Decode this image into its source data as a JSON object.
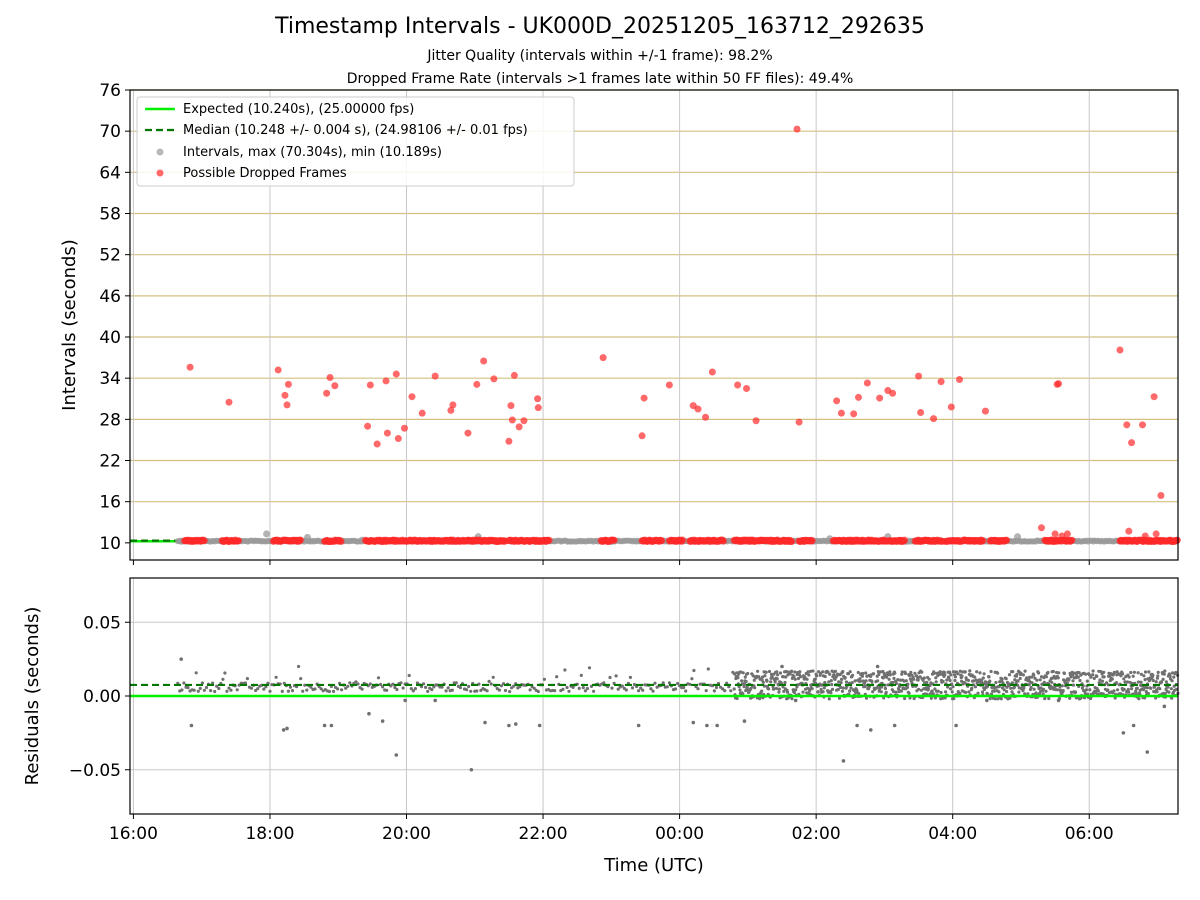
{
  "figure": {
    "title": "Timestamp Intervals - UK000D_20251205_163712_292635",
    "subtitle_jitter": "Jitter Quality (intervals within +/-1 frame): 98.2%",
    "subtitle_dropped": "Dropped Frame Rate (intervals >1 frames late within 50 FF files): 49.4%",
    "colors": {
      "expected": "#00ee00",
      "median": "#007700",
      "intervals": "#9a9a9a",
      "dropped": "#ff2a2a",
      "hgrid_top": "#d4c080",
      "grid": "#c8c8c8",
      "residual_points": "#707070"
    }
  },
  "chart_data": [
    {
      "type": "scatter",
      "name": "intervals",
      "ylabel": "Intervals (seconds)",
      "xlim_hours": [
        15.95,
        31.3
      ],
      "ylim": [
        7.5,
        76
      ],
      "yticks": [
        "10",
        "16",
        "22",
        "28",
        "34",
        "40",
        "46",
        "52",
        "58",
        "64",
        "70",
        "76"
      ],
      "grid": true,
      "legend_position": "top-left",
      "legend": [
        {
          "label": "Expected (10.240s), (25.00000 fps)",
          "marker": "solid-line"
        },
        {
          "label": "Median (10.248 +/- 0.004 s), (24.98106 +/- 0.01 fps)",
          "marker": "dashed-line"
        },
        {
          "label": "Intervals, max (70.304s), min (10.189s)",
          "marker": "gray-dot"
        },
        {
          "label": "Possible Dropped Frames",
          "marker": "red-dot"
        }
      ],
      "expected_interval": 10.24,
      "median_interval": 10.248,
      "interval_points": [
        [
          16.7,
          10.25
        ],
        [
          17.95,
          11.3
        ],
        [
          18.55,
          10.8
        ],
        [
          19.35,
          10.4
        ],
        [
          20.65,
          10.3
        ],
        [
          21.05,
          10.9
        ],
        [
          23.0,
          10.2
        ],
        [
          25.55,
          10.35
        ],
        [
          26.2,
          10.6
        ],
        [
          27.05,
          10.9
        ],
        [
          28.45,
          10.3
        ],
        [
          28.95,
          10.9
        ],
        [
          31.2,
          10.2
        ]
      ],
      "dropped_points": [
        [
          16.83,
          35.6
        ],
        [
          17.4,
          30.5
        ],
        [
          18.12,
          35.2
        ],
        [
          18.22,
          31.5
        ],
        [
          18.25,
          30.1
        ],
        [
          18.27,
          33.1
        ],
        [
          18.83,
          31.8
        ],
        [
          18.88,
          34.1
        ],
        [
          18.95,
          32.9
        ],
        [
          19.43,
          27.0
        ],
        [
          19.47,
          33.0
        ],
        [
          19.57,
          24.4
        ],
        [
          19.7,
          33.6
        ],
        [
          19.72,
          26.0
        ],
        [
          19.85,
          34.6
        ],
        [
          19.88,
          25.2
        ],
        [
          19.97,
          26.7
        ],
        [
          20.08,
          31.3
        ],
        [
          20.23,
          28.9
        ],
        [
          20.42,
          34.3
        ],
        [
          20.65,
          29.3
        ],
        [
          20.68,
          30.1
        ],
        [
          20.9,
          26.0
        ],
        [
          21.03,
          33.1
        ],
        [
          21.13,
          36.5
        ],
        [
          21.28,
          33.9
        ],
        [
          21.5,
          24.8
        ],
        [
          21.53,
          30.0
        ],
        [
          21.55,
          27.9
        ],
        [
          21.58,
          34.4
        ],
        [
          21.65,
          26.9
        ],
        [
          21.72,
          27.8
        ],
        [
          21.92,
          31.0
        ],
        [
          21.93,
          29.7
        ],
        [
          22.88,
          37.0
        ],
        [
          23.45,
          25.6
        ],
        [
          23.48,
          31.1
        ],
        [
          23.85,
          33.0
        ],
        [
          24.2,
          30.0
        ],
        [
          24.27,
          29.5
        ],
        [
          24.38,
          28.3
        ],
        [
          24.48,
          34.9
        ],
        [
          24.85,
          33.0
        ],
        [
          24.98,
          32.5
        ],
        [
          25.12,
          27.8
        ],
        [
          25.72,
          70.3
        ],
        [
          25.75,
          27.6
        ],
        [
          26.3,
          30.7
        ],
        [
          26.37,
          28.9
        ],
        [
          26.55,
          28.8
        ],
        [
          26.62,
          31.2
        ],
        [
          26.75,
          33.3
        ],
        [
          26.93,
          31.1
        ],
        [
          27.05,
          32.2
        ],
        [
          27.12,
          31.8
        ],
        [
          27.5,
          34.3
        ],
        [
          27.53,
          29.0
        ],
        [
          27.72,
          28.1
        ],
        [
          27.83,
          33.5
        ],
        [
          27.98,
          29.8
        ],
        [
          28.1,
          33.8
        ],
        [
          28.48,
          29.2
        ],
        [
          29.53,
          33.1
        ],
        [
          29.55,
          33.2
        ],
        [
          29.3,
          12.2
        ],
        [
          29.5,
          11.3
        ],
        [
          29.6,
          11.0
        ],
        [
          29.68,
          11.3
        ],
        [
          30.45,
          38.1
        ],
        [
          30.55,
          27.2
        ],
        [
          30.62,
          24.6
        ],
        [
          30.58,
          11.7
        ],
        [
          30.78,
          27.2
        ],
        [
          30.82,
          11.0
        ],
        [
          30.95,
          31.3
        ],
        [
          30.98,
          11.3
        ],
        [
          31.05,
          16.9
        ]
      ],
      "dropped_bands_hours": [
        [
          16.75,
          17.05
        ],
        [
          17.3,
          17.55
        ],
        [
          18.05,
          18.45
        ],
        [
          18.8,
          19.05
        ],
        [
          19.4,
          21.05
        ],
        [
          21.05,
          21.45
        ],
        [
          21.5,
          22.1
        ],
        [
          22.85,
          23.05
        ],
        [
          23.45,
          23.75
        ],
        [
          23.85,
          24.05
        ],
        [
          24.15,
          24.65
        ],
        [
          24.8,
          25.65
        ],
        [
          25.75,
          25.95
        ],
        [
          26.25,
          27.3
        ],
        [
          27.45,
          27.85
        ],
        [
          27.9,
          28.45
        ],
        [
          28.55,
          28.8
        ],
        [
          29.35,
          29.75
        ],
        [
          30.45,
          31.3
        ]
      ]
    },
    {
      "type": "scatter",
      "name": "residuals",
      "xlabel": "Time (UTC)",
      "ylabel": "Residuals (seconds)",
      "xlim_hours": [
        15.95,
        31.3
      ],
      "ylim": [
        -0.08,
        0.08
      ],
      "yticks": [
        "0.05",
        "0.00",
        "−0.05"
      ],
      "ytick_values": [
        0.05,
        0.0,
        -0.05
      ],
      "xtick_hours": [
        16,
        18,
        20,
        22,
        24,
        26,
        28,
        30
      ],
      "xticks": [
        "16:00",
        "18:00",
        "20:00",
        "22:00",
        "00:00",
        "02:00",
        "04:00",
        "06:00"
      ],
      "grid": true,
      "expected_residual": 0.0,
      "median_residual": 0.0075,
      "dense_region_start_hour": 24.8,
      "outliers": [
        [
          16.7,
          0.025
        ],
        [
          16.85,
          -0.02
        ],
        [
          18.2,
          -0.023
        ],
        [
          18.25,
          -0.022
        ],
        [
          18.8,
          -0.02
        ],
        [
          18.9,
          -0.02
        ],
        [
          19.45,
          -0.012
        ],
        [
          19.65,
          -0.017
        ],
        [
          19.85,
          -0.04
        ],
        [
          19.98,
          -0.003
        ],
        [
          20.42,
          -0.003
        ],
        [
          20.95,
          -0.05
        ],
        [
          21.15,
          -0.018
        ],
        [
          21.5,
          -0.02
        ],
        [
          21.6,
          -0.019
        ],
        [
          21.95,
          -0.02
        ],
        [
          23.4,
          -0.02
        ],
        [
          24.2,
          -0.018
        ],
        [
          24.4,
          -0.02
        ],
        [
          24.55,
          -0.02
        ],
        [
          24.95,
          -0.017
        ],
        [
          25.7,
          -0.003
        ],
        [
          26.4,
          -0.044
        ],
        [
          26.6,
          -0.02
        ],
        [
          26.8,
          -0.023
        ],
        [
          27.15,
          -0.02
        ],
        [
          28.05,
          -0.02
        ],
        [
          28.5,
          -0.003
        ],
        [
          29.55,
          -0.003
        ],
        [
          30.5,
          -0.025
        ],
        [
          30.65,
          -0.02
        ],
        [
          30.85,
          -0.038
        ],
        [
          31.1,
          -0.007
        ],
        [
          25.5,
          0.02
        ],
        [
          26.9,
          0.02
        ]
      ]
    }
  ]
}
